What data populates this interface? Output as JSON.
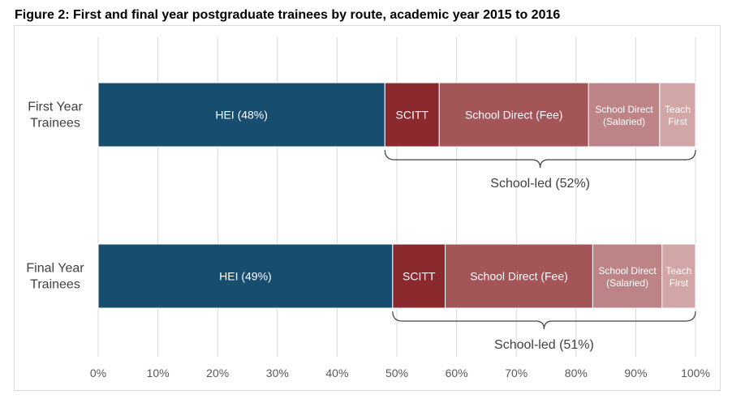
{
  "title": "Figure 2: First and final year postgraduate trainees by route, academic year 2015 to 2016",
  "chart_data": {
    "type": "bar",
    "orientation": "horizontal",
    "stacked": true,
    "xlim": [
      0,
      100
    ],
    "x_ticks": [
      "0%",
      "10%",
      "20%",
      "30%",
      "40%",
      "50%",
      "60%",
      "70%",
      "80%",
      "90%",
      "100%"
    ],
    "grid": true,
    "categories": [
      {
        "label_lines": [
          "First Year",
          "Trainees"
        ],
        "brace_label": "School-led (52%)"
      },
      {
        "label_lines": [
          "Final Year",
          "Trainees"
        ],
        "brace_label": "School-led (51%)"
      }
    ],
    "series": [
      {
        "key": "hei",
        "color": "#174E6F",
        "values": [
          48,
          49.3
        ],
        "labels": [
          [
            "HEI (48%)"
          ],
          [
            "HEI (49%)"
          ]
        ]
      },
      {
        "key": "scitt",
        "color": "#8B2A2E",
        "values": [
          9.1,
          8.8
        ],
        "labels": [
          [
            "SCITT"
          ],
          [
            "SCITT"
          ]
        ]
      },
      {
        "key": "sd_fee",
        "color": "#A45558",
        "values": [
          25,
          24.7
        ],
        "labels": [
          [
            "School Direct (Fee)"
          ],
          [
            "School Direct (Fee)"
          ]
        ]
      },
      {
        "key": "sd_salaried",
        "color": "#BD8488",
        "values": [
          11.9,
          11.6
        ],
        "labels": [
          [
            "School Direct",
            "(Salaried)"
          ],
          [
            "School Direct",
            "(Salaried)"
          ]
        ]
      },
      {
        "key": "teach_first",
        "color": "#D2A5A6",
        "values": [
          6,
          5.6
        ],
        "labels": [
          [
            "Teach",
            "First"
          ],
          [
            "Teach",
            "First"
          ]
        ]
      }
    ]
  }
}
